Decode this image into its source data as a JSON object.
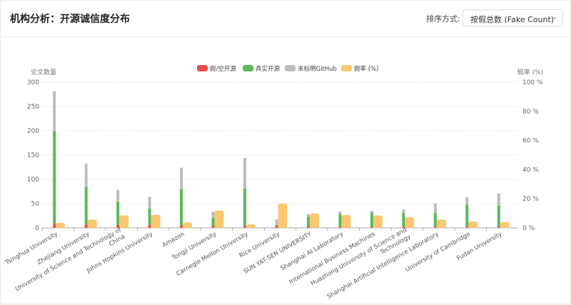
{
  "header": {
    "title": "机构分析：开源诚信度分布",
    "sort_label": "排序方式:",
    "sort_value": "按假总数 (Fake Count)"
  },
  "chart_data": {
    "type": "bar",
    "title": "",
    "ylabel_left": "论文数量",
    "ylabel_right": "假率 (%)",
    "ylim_left": [
      0,
      300
    ],
    "yticks_left": [
      0,
      50,
      100,
      150,
      200,
      250,
      300
    ],
    "ylim_right": [
      0,
      100
    ],
    "yticks_right": [
      "0 %",
      "20 %",
      "40 %",
      "60 %",
      "80 %",
      "100 %"
    ],
    "grid": true,
    "legend_position": "top-center",
    "categories": [
      "Tsinghua University",
      "Zhejiang University",
      "University of Science and Technology of China",
      "Johns Hopkins University",
      "Amazon",
      "Tongji University",
      "Carnegie Mellon University",
      "Rice University",
      "SUN YAT-SEN UNIVERSITY",
      "Shanghai AI Laboratory",
      "International Business Machines",
      "Huazhong University of Science and Technology",
      "Shanghai Artificial Intelligence Laboratory",
      "University of Cambridge",
      "Fudan University"
    ],
    "series": [
      {
        "name": "假/空开源",
        "stack": "papers",
        "axis": "left",
        "color": "#e84c4c",
        "values": [
          10,
          7,
          6,
          6,
          5,
          3,
          3,
          3,
          2,
          2,
          2,
          2,
          2,
          2,
          2
        ]
      },
      {
        "name": "真实开源",
        "stack": "papers",
        "axis": "left",
        "color": "#5cb85c",
        "values": [
          189,
          78,
          48,
          34,
          75,
          18,
          78,
          3,
          21,
          27,
          30,
          28,
          29,
          46,
          44
        ]
      },
      {
        "name": "未标明GitHub",
        "stack": "papers",
        "axis": "left",
        "color": "#bdbdbd",
        "values": [
          82,
          47,
          24,
          24,
          44,
          12,
          63,
          11,
          5,
          5,
          3,
          8,
          19,
          15,
          25
        ]
      },
      {
        "name": "假率 (%)",
        "axis": "right",
        "color": "#fcc770",
        "values": [
          3.5,
          5.7,
          8.6,
          9,
          3.7,
          11.9,
          2.4,
          16.6,
          10,
          8.8,
          8.5,
          7.3,
          5.7,
          4.4,
          4
        ]
      }
    ]
  }
}
